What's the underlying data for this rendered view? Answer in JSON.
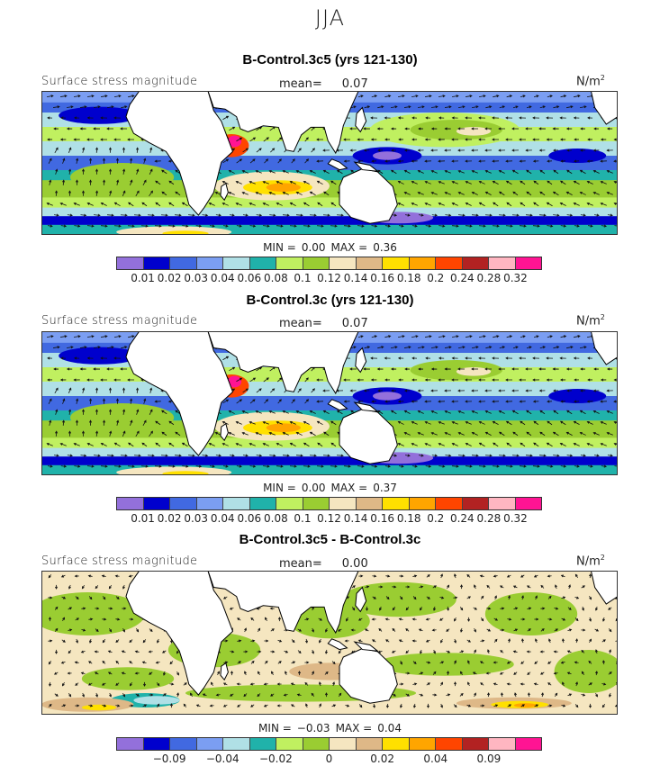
{
  "figure_title": "JJA",
  "colors": [
    "#9370DB",
    "#0000CD",
    "#4169E1",
    "#7B9EF2",
    "#B0E0E6",
    "#20B2AA",
    "#C0F060",
    "#9ACD32",
    "#F5E6C0",
    "#DEB887",
    "#FFE000",
    "#FFA500",
    "#FF4500",
    "#B22222",
    "#FFB6C1",
    "#FF1493"
  ],
  "panels": [
    {
      "title": "B-Control.3c5 (yrs 121-130)",
      "field_label": "Surface stress magnitude",
      "mean_label": "mean=",
      "mean": "0.07",
      "units": "N/m",
      "units_exp": "2",
      "min_label": "MIN =",
      "min": "0.00",
      "max_label": "MAX =",
      "max": "0.36",
      "colorbar_labels": [
        "0.01",
        "0.02",
        "0.03",
        "0.04",
        "0.06",
        "0.08",
        "0.1",
        "0.12",
        "0.14",
        "0.16",
        "0.18",
        "0.2",
        "0.24",
        "0.28",
        "0.32"
      ]
    },
    {
      "title": "B-Control.3c (yrs 121-130)",
      "field_label": "Surface stress magnitude",
      "mean_label": "mean=",
      "mean": "0.07",
      "units": "N/m",
      "units_exp": "2",
      "min_label": "MIN =",
      "min": "0.00",
      "max_label": "MAX =",
      "max": "0.37",
      "colorbar_labels": [
        "0.01",
        "0.02",
        "0.03",
        "0.04",
        "0.06",
        "0.08",
        "0.1",
        "0.12",
        "0.14",
        "0.16",
        "0.18",
        "0.2",
        "0.24",
        "0.28",
        "0.32"
      ]
    },
    {
      "title": "B-Control.3c5 - B-Control.3c",
      "field_label": "Surface stress magnitude",
      "mean_label": "mean=",
      "mean": "0.00",
      "units": "N/m",
      "units_exp": "2",
      "min_label": "MIN =",
      "min": "−0.03",
      "max_label": "MAX =",
      "max": "0.04",
      "colorbar_labels": [
        "−0.09",
        "−0.04",
        "−0.02",
        "0",
        "0.02",
        "0.04",
        "0.09"
      ]
    }
  ]
}
